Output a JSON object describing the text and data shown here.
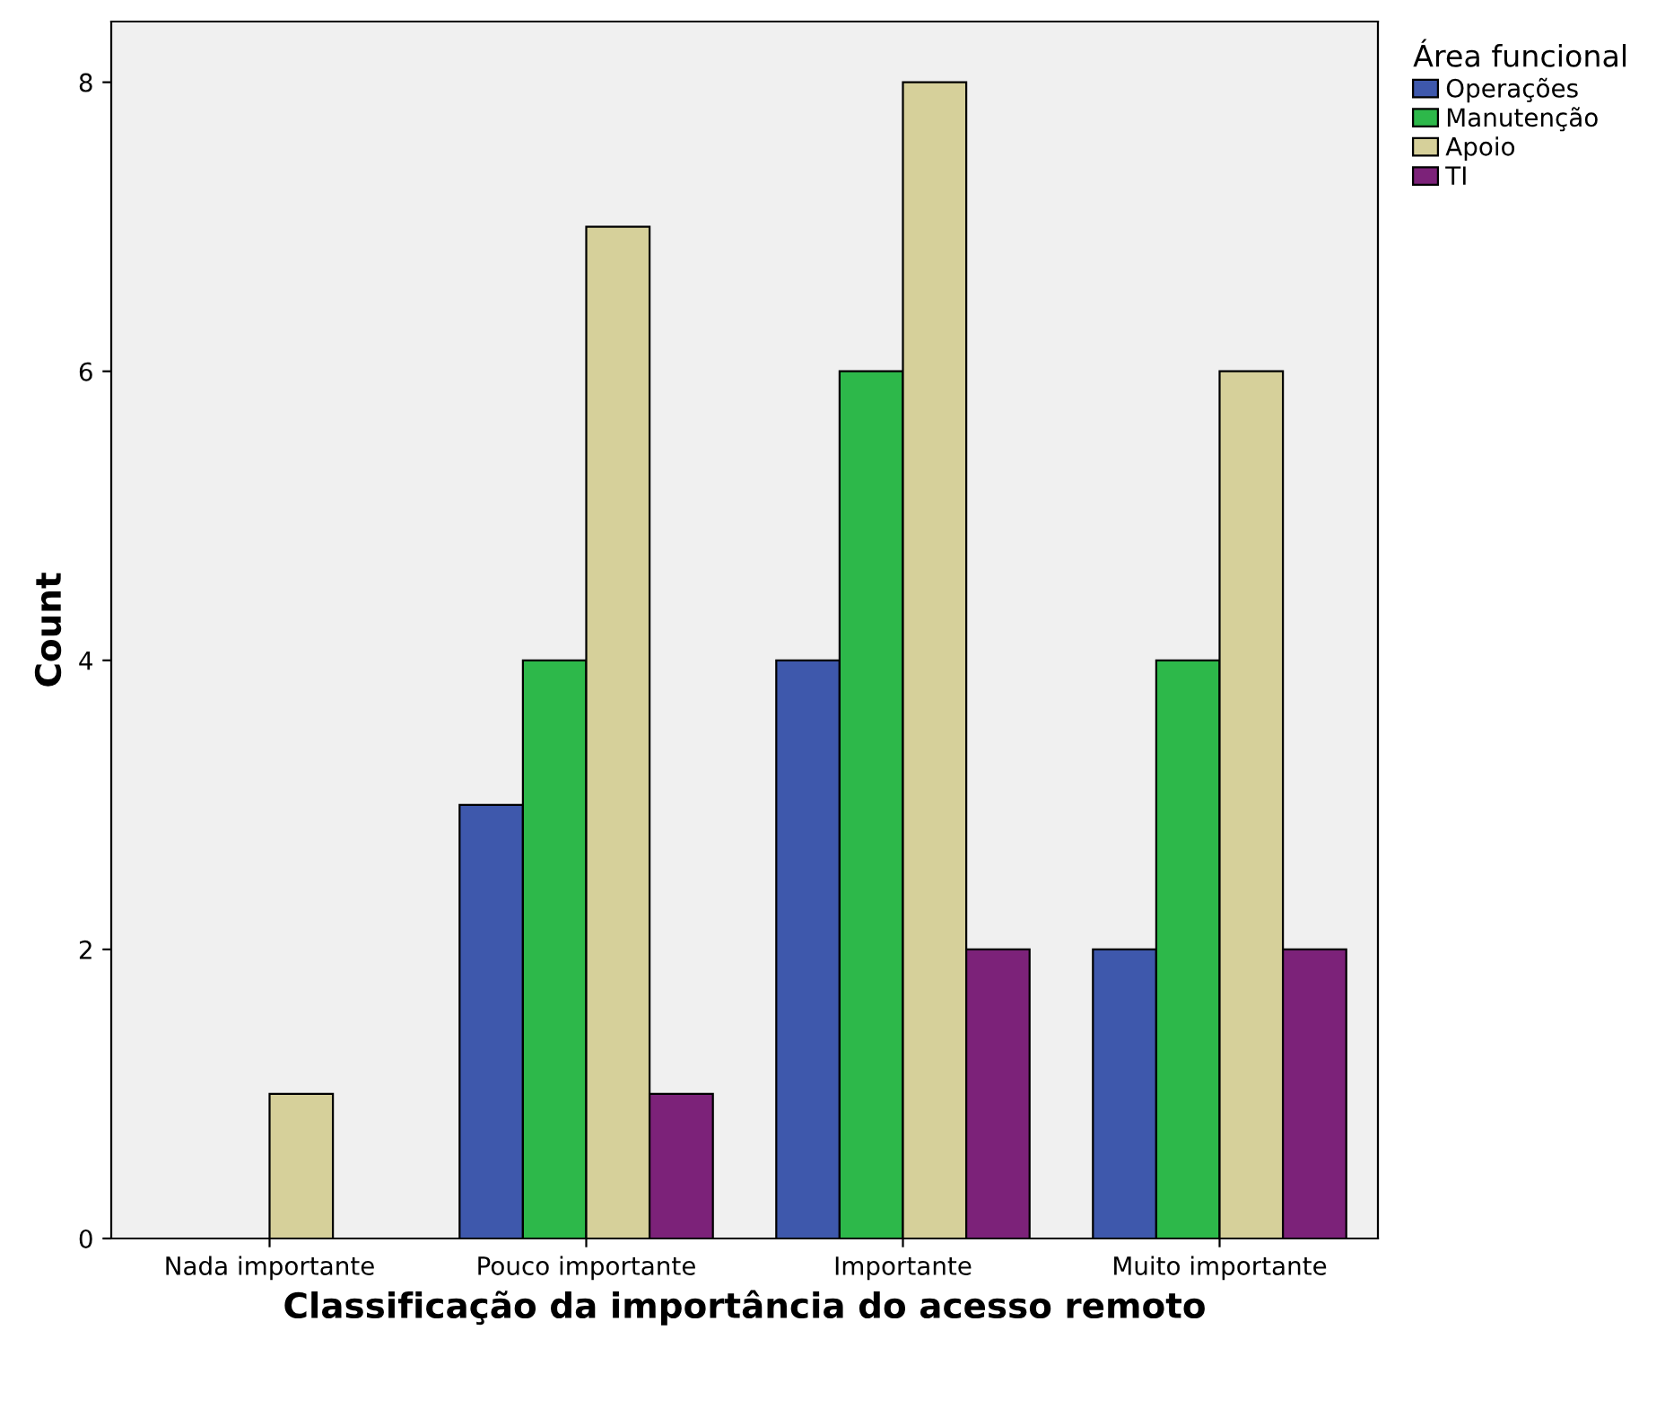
{
  "chart_data": {
    "type": "bar",
    "xlabel": "Classificação da importância do acesso remoto",
    "ylabel": "Count",
    "legend_title": "Área funcional",
    "categories": [
      "Nada importante",
      "Pouco importante",
      "Importante",
      "Muito importante"
    ],
    "series": [
      {
        "name": "Operações",
        "color": "#3e58ac",
        "values": [
          0,
          3,
          4,
          2
        ]
      },
      {
        "name": "Manutenção",
        "color": "#2db84a",
        "values": [
          0,
          4,
          6,
          4
        ]
      },
      {
        "name": "Apoio",
        "color": "#d6d09a",
        "values": [
          1,
          7,
          8,
          6
        ]
      },
      {
        "name": "TI",
        "color": "#7c2279",
        "values": [
          0,
          1,
          2,
          2
        ]
      }
    ],
    "ylim": [
      0,
      8.42
    ],
    "yticks": [
      0,
      2,
      4,
      6,
      8
    ],
    "grid": false,
    "legend": "top right"
  }
}
